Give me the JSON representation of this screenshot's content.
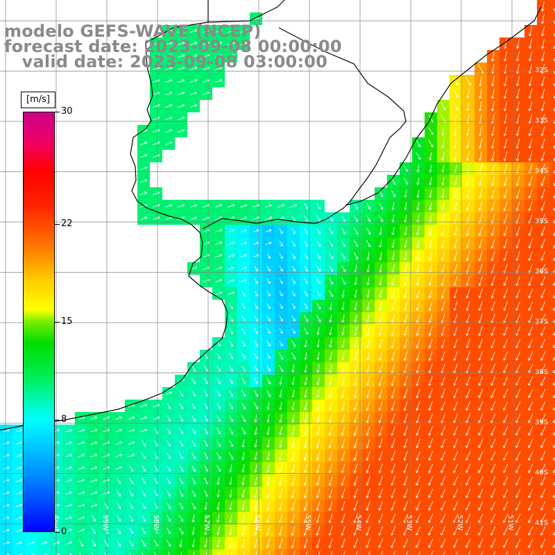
{
  "title": {
    "line1": "modelo GEFS-WAVE (NCEP)",
    "line2": "forecast date: 2023-09-08 00:00:00",
    "line3": "   valid date: 2023-09-08 03:00:00"
  },
  "colorbar": {
    "unit": "[m/s]",
    "ticks": [
      "30",
      "22",
      "15",
      "8",
      "0"
    ],
    "tick_values": [
      30,
      22,
      15,
      8,
      0
    ],
    "range": [
      0,
      30
    ],
    "colors": [
      "#0000ff",
      "#0088ff",
      "#00ffff",
      "#00dd00",
      "#ffff00",
      "#ff7700",
      "#ff0000",
      "#cc0088"
    ]
  },
  "map": {
    "field": "wind speed",
    "lat_labels": [
      "32S",
      "33S",
      "34S",
      "35S",
      "36S",
      "37S",
      "38S",
      "39S",
      "40S",
      "41S"
    ],
    "lon_labels": [
      "60W",
      "59W",
      "58W",
      "57W",
      "56W",
      "55W",
      "54W",
      "53W",
      "52W",
      "51W"
    ]
  }
}
